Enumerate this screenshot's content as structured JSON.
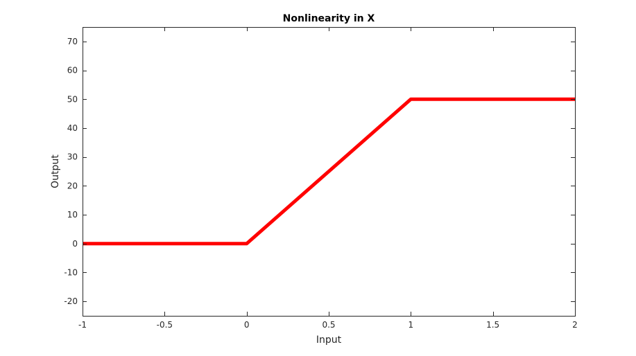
{
  "chart_data": {
    "type": "line",
    "title": "Nonlinearity in X",
    "xlabel": "Input",
    "ylabel": "Output",
    "xlim": [
      -1,
      2
    ],
    "ylim": [
      -25,
      75
    ],
    "xticks": [
      -1,
      -0.5,
      0,
      0.5,
      1,
      1.5,
      2
    ],
    "xtick_labels": [
      "-1",
      "-0.5",
      "0",
      "0.5",
      "1",
      "1.5",
      "2"
    ],
    "yticks": [
      -20,
      -10,
      0,
      10,
      20,
      30,
      40,
      50,
      60,
      70
    ],
    "ytick_labels": [
      "-20",
      "-10",
      "0",
      "10",
      "20",
      "30",
      "40",
      "50",
      "60",
      "70"
    ],
    "grid": false,
    "series": [
      {
        "color": "#ff0000",
        "x": [
          -1,
          0,
          1,
          2
        ],
        "y": [
          0,
          0,
          50,
          50
        ]
      }
    ]
  }
}
